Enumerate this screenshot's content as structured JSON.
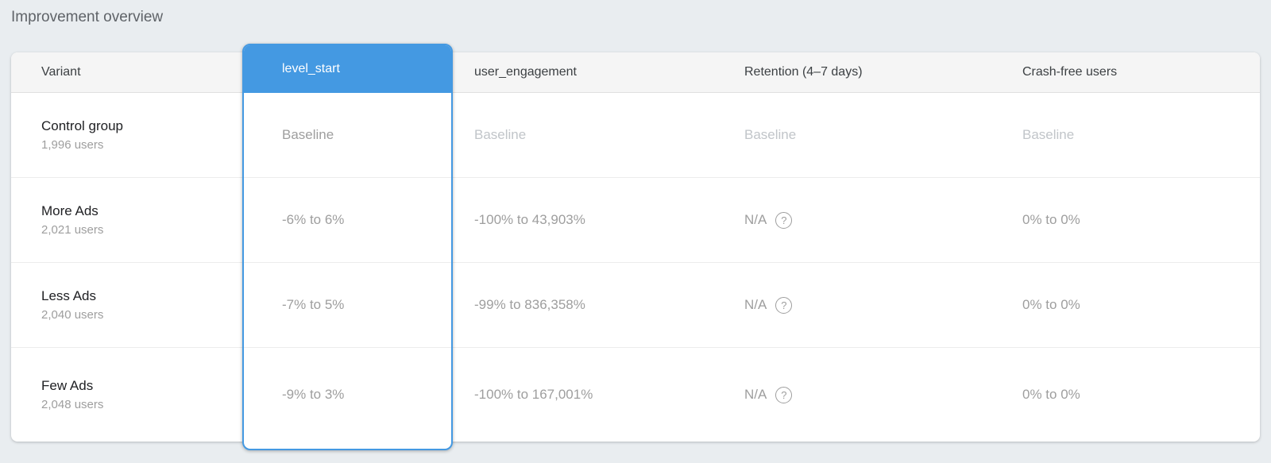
{
  "page": {
    "title": "Improvement overview"
  },
  "colors": {
    "accent_blue": "#4499e2",
    "page_background": "#e9edf0",
    "header_row_background": "#f5f5f5",
    "baseline_text": "#c1c5c9",
    "value_text": "#9e9e9e"
  },
  "icons": {
    "help": "help-circle-icon",
    "help_glyph": "?"
  },
  "table": {
    "columns": [
      {
        "key": "variant",
        "label": "Variant",
        "selected": false
      },
      {
        "key": "level_start",
        "label": "level_start",
        "selected": true
      },
      {
        "key": "user_engagement",
        "label": "user_engagement",
        "selected": false
      },
      {
        "key": "retention",
        "label": "Retention (4–7 days)",
        "selected": false
      },
      {
        "key": "crash_free",
        "label": "Crash-free users",
        "selected": false
      }
    ],
    "rows": [
      {
        "variant": "Control group",
        "users": "1,996 users",
        "level_start": "Baseline",
        "user_engagement": "Baseline",
        "retention": "Baseline",
        "retention_help": false,
        "crash_free": "Baseline",
        "is_baseline": true
      },
      {
        "variant": "More Ads",
        "users": "2,021 users",
        "level_start": "-6% to 6%",
        "user_engagement": "-100% to 43,903%",
        "retention": "N/A",
        "retention_help": true,
        "crash_free": "0% to 0%",
        "is_baseline": false
      },
      {
        "variant": "Less Ads",
        "users": "2,040 users",
        "level_start": "-7% to 5%",
        "user_engagement": "-99% to 836,358%",
        "retention": "N/A",
        "retention_help": true,
        "crash_free": "0% to 0%",
        "is_baseline": false
      },
      {
        "variant": "Few Ads",
        "users": "2,048 users",
        "level_start": "-9% to 3%",
        "user_engagement": "-100% to 167,001%",
        "retention": "N/A",
        "retention_help": true,
        "crash_free": "0% to 0%",
        "is_baseline": false
      }
    ]
  }
}
